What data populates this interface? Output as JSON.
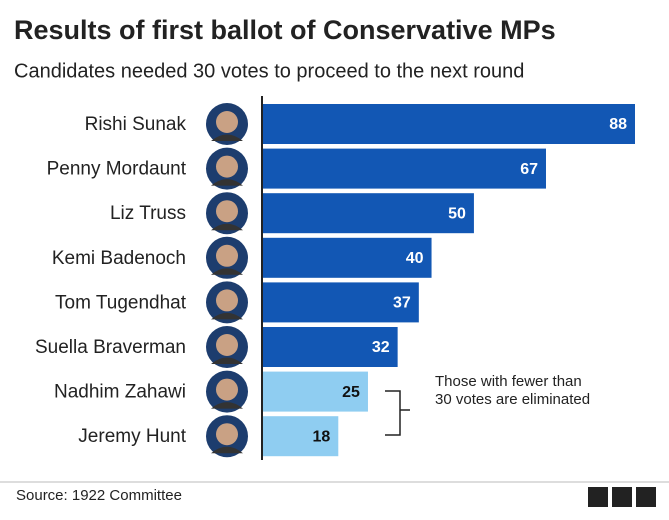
{
  "chart_data": {
    "type": "bar",
    "orientation": "horizontal",
    "title": "Results of first ballot of Conservative MPs",
    "subtitle": "Candidates needed 30 votes to proceed to the next round",
    "categories": [
      "Rishi Sunak",
      "Penny Mordaunt",
      "Liz Truss",
      "Kemi Badenoch",
      "Tom Tugendhat",
      "Suella Braverman",
      "Nadhim Zahawi",
      "Jeremy Hunt"
    ],
    "values": [
      88,
      67,
      50,
      40,
      37,
      32,
      25,
      18
    ],
    "colors": [
      "#1257b4",
      "#1257b4",
      "#1257b4",
      "#1257b4",
      "#1257b4",
      "#1257b4",
      "#8fcdf1",
      "#8fcdf1"
    ],
    "xlim": [
      0,
      88
    ],
    "annotation": [
      "Those with fewer than",
      "30 votes are eliminated"
    ],
    "source": "Source: 1922 Committee"
  }
}
